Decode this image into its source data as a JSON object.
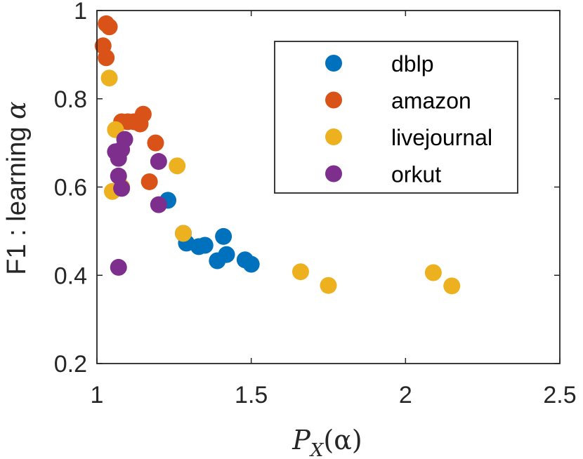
{
  "chart_data": {
    "type": "scatter",
    "title": "",
    "xlabel_main": "P",
    "xlabel_sub": "X",
    "xlabel_arg": "(α)",
    "ylabel_text": "F1 : learning ",
    "ylabel_symbol": "α",
    "xlim": [
      1,
      2.5
    ],
    "ylim": [
      0.2,
      1
    ],
    "xticks": [
      1,
      1.5,
      2,
      2.5
    ],
    "xtick_labels": [
      "1",
      "1.5",
      "2",
      "2.5"
    ],
    "yticks": [
      0.2,
      0.4,
      0.6,
      0.8,
      1
    ],
    "ytick_labels": [
      "0.2",
      "0.4",
      "0.6",
      "0.8",
      "1"
    ],
    "legend_position": "top-right",
    "series": [
      {
        "name": "dblp",
        "color": "#0072BD",
        "points": [
          [
            1.23,
            0.57
          ],
          [
            1.28,
            0.495
          ],
          [
            1.29,
            0.473
          ],
          [
            1.33,
            0.465
          ],
          [
            1.35,
            0.468
          ],
          [
            1.39,
            0.433
          ],
          [
            1.41,
            0.488
          ],
          [
            1.42,
            0.447
          ],
          [
            1.48,
            0.435
          ],
          [
            1.5,
            0.425
          ]
        ]
      },
      {
        "name": "amazon",
        "color": "#D95319",
        "points": [
          [
            1.03,
            0.97
          ],
          [
            1.04,
            0.963
          ],
          [
            1.02,
            0.92
          ],
          [
            1.03,
            0.893
          ],
          [
            1.08,
            0.748
          ],
          [
            1.1,
            0.748
          ],
          [
            1.12,
            0.748
          ],
          [
            1.14,
            0.743
          ],
          [
            1.15,
            0.765
          ],
          [
            1.19,
            0.7
          ],
          [
            1.17,
            0.612
          ]
        ]
      },
      {
        "name": "livejournal",
        "color": "#EDB120",
        "points": [
          [
            1.04,
            0.847
          ],
          [
            1.06,
            0.73
          ],
          [
            1.05,
            0.59
          ],
          [
            1.08,
            0.6
          ],
          [
            1.26,
            0.648
          ],
          [
            1.28,
            0.495
          ],
          [
            1.66,
            0.408
          ],
          [
            1.75,
            0.377
          ],
          [
            2.09,
            0.406
          ],
          [
            2.15,
            0.376
          ]
        ]
      },
      {
        "name": "orkut",
        "color": "#7E2F8E",
        "points": [
          [
            1.09,
            0.708
          ],
          [
            1.06,
            0.68
          ],
          [
            1.08,
            0.685
          ],
          [
            1.07,
            0.665
          ],
          [
            1.07,
            0.625
          ],
          [
            1.08,
            0.597
          ],
          [
            1.2,
            0.658
          ],
          [
            1.2,
            0.56
          ],
          [
            1.07,
            0.418
          ]
        ]
      }
    ]
  }
}
